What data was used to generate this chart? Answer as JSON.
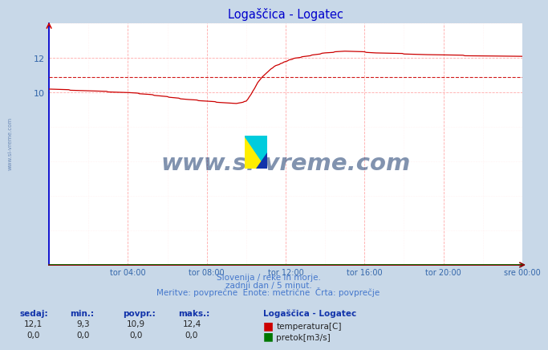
{
  "title": "Logaščica - Logatec",
  "title_color": "#0000cc",
  "bg_color": "#c8d8e8",
  "plot_bg_color": "#ffffff",
  "grid_color_major": "#ffaaaa",
  "grid_color_minor": "#ffe8e8",
  "xlim": [
    0,
    24
  ],
  "ylim": [
    0,
    13.806
  ],
  "yticks": [
    10,
    12
  ],
  "xtick_labels": [
    "tor 04:00",
    "tor 08:00",
    "tor 12:00",
    "tor 16:00",
    "tor 20:00",
    "sre 00:00"
  ],
  "xtick_positions": [
    4,
    8,
    12,
    16,
    20,
    24
  ],
  "avg_line_y": 10.9,
  "avg_line_color": "#cc0000",
  "temp_line_color": "#cc0000",
  "pretok_line_color": "#007700",
  "spine_left_color": "#0000cc",
  "spine_bottom_color": "#880000",
  "watermark_text": "www.si-vreme.com",
  "watermark_color": "#1a3a6e",
  "watermark_alpha": 0.55,
  "footer_line1": "Slovenija / reke in morje.",
  "footer_line2": "zadnji dan / 5 minut.",
  "footer_line3": "Meritve: povprečne  Enote: metrične  Črta: povprečje",
  "footer_color": "#4477cc",
  "table_headers": [
    "sedaj:",
    "min.:",
    "povpr.:",
    "maks.:"
  ],
  "table_label": "Logaščica - Logatec",
  "table_temp": [
    12.1,
    9.3,
    10.9,
    12.4
  ],
  "table_pretok": [
    0.0,
    0.0,
    0.0,
    0.0
  ],
  "sidebar_text": "www.si-vreme.com",
  "sidebar_color": "#5577aa"
}
